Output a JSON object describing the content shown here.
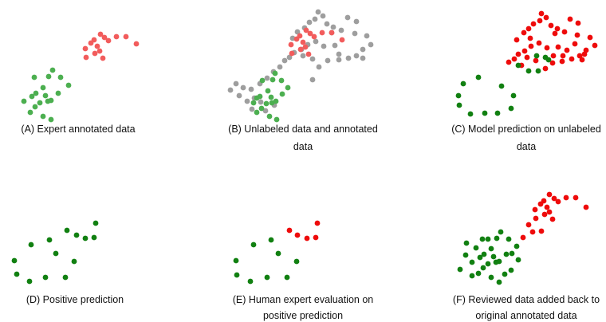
{
  "colors": {
    "annotated_green": "#4caf50",
    "annotated_red": "#f25c5c",
    "unlabeled_gray": "#9e9e9e",
    "pred_green": "#118011",
    "pred_red": "#ee0b0b"
  },
  "panels": [
    {
      "id": "A",
      "caption": [
        "(A) Expert annotated data"
      ],
      "clusters": [
        {
          "class": "negative",
          "color": "annotated_green",
          "points": [
            [
              66,
              88
            ],
            [
              43,
              97
            ],
            [
              61,
              96
            ],
            [
              76,
              97
            ],
            [
              86,
              107
            ],
            [
              54,
              110
            ],
            [
              73,
              117
            ],
            [
              45,
              117
            ],
            [
              40,
              121
            ],
            [
              57,
              120
            ],
            [
              64,
              126
            ],
            [
              30,
              127
            ],
            [
              50,
              129
            ],
            [
              60,
              127
            ],
            [
              44,
              134
            ],
            [
              38,
              141
            ],
            [
              54,
              146
            ],
            [
              64,
              150
            ]
          ]
        },
        {
          "class": "positive",
          "color": "annotated_red",
          "points": [
            [
              126,
              43
            ],
            [
              131,
              47
            ],
            [
              146,
              46
            ],
            [
              158,
              46
            ],
            [
              118,
              50
            ],
            [
              136,
              51
            ],
            [
              114,
              54
            ],
            [
              171,
              55
            ],
            [
              122,
              58
            ],
            [
              107,
              61
            ],
            [
              125,
              64
            ],
            [
              119,
              67
            ],
            [
              108,
              72
            ],
            [
              129,
              73
            ]
          ]
        }
      ]
    },
    {
      "id": "B",
      "caption": [
        "(B) Unlabeled data and annotated",
        "data"
      ],
      "clusters": [
        {
          "class": "unlabeled",
          "color": "unlabeled_gray",
          "points": [
            [
              399,
              15
            ],
            [
              405,
              20
            ],
            [
              395,
              24
            ],
            [
              388,
              28
            ],
            [
              382,
              35
            ],
            [
              373,
              40
            ],
            [
              410,
              30
            ],
            [
              418,
              34
            ],
            [
              428,
              38
            ],
            [
              436,
              22
            ],
            [
              447,
              27
            ],
            [
              445,
              42
            ],
            [
              460,
              45
            ],
            [
              465,
              56
            ],
            [
              455,
              62
            ],
            [
              447,
              70
            ],
            [
              437,
              73
            ],
            [
              425,
              68
            ],
            [
              420,
              57
            ],
            [
              396,
              52
            ],
            [
              406,
              58
            ],
            [
              386,
              56
            ],
            [
              378,
              62
            ],
            [
              369,
              66
            ],
            [
              380,
              70
            ],
            [
              392,
              74
            ],
            [
              363,
              72
            ],
            [
              357,
              76
            ],
            [
              351,
              84
            ],
            [
              343,
              90
            ],
            [
              335,
              98
            ],
            [
              326,
              105
            ],
            [
              315,
              112
            ],
            [
              305,
              110
            ],
            [
              296,
              105
            ],
            [
              289,
              113
            ],
            [
              300,
              120
            ],
            [
              310,
              127
            ],
            [
              319,
              123
            ],
            [
              327,
              128
            ],
            [
              316,
              137
            ],
            [
              333,
              139
            ],
            [
              344,
              132
            ],
            [
              400,
              84
            ],
            [
              411,
              76
            ],
            [
              416,
              41
            ],
            [
              367,
              48
            ],
            [
              425,
              75
            ],
            [
              392,
              100
            ],
            [
              455,
              73
            ]
          ]
        },
        {
          "class": "negative",
          "color": "annotated_green",
          "points": [
            [
              345,
              92
            ],
            [
              329,
              101
            ],
            [
              342,
              100
            ],
            [
              353,
              101
            ],
            [
              361,
              110
            ],
            [
              336,
              114
            ],
            [
              354,
              118
            ],
            [
              326,
              121
            ],
            [
              322,
              123
            ],
            [
              340,
              122
            ],
            [
              346,
              127
            ],
            [
              318,
              129
            ],
            [
              334,
              130
            ],
            [
              341,
              129
            ],
            [
              328,
              136
            ],
            [
              322,
              141
            ],
            [
              338,
              146
            ],
            [
              347,
              150
            ]
          ]
        },
        {
          "class": "positive",
          "color": "annotated_red",
          "points": [
            [
              384,
              38
            ],
            [
              389,
              42
            ],
            [
              404,
              41
            ],
            [
              416,
              41
            ],
            [
              376,
              45
            ],
            [
              394,
              46
            ],
            [
              372,
              49
            ],
            [
              429,
              50
            ],
            [
              380,
              53
            ],
            [
              365,
              56
            ],
            [
              383,
              59
            ],
            [
              377,
              62
            ],
            [
              366,
              67
            ],
            [
              387,
              68
            ]
          ]
        }
      ]
    },
    {
      "id": "C",
      "caption": [
        "(C) Model prediction on unlabeled",
        "data"
      ],
      "clusters": [
        {
          "class": "positive",
          "color": "pred_red",
          "points": [
            [
              679,
              17
            ],
            [
              685,
              22
            ],
            [
              677,
              26
            ],
            [
              669,
              30
            ],
            [
              663,
              36
            ],
            [
              657,
              41
            ],
            [
              691,
              32
            ],
            [
              699,
              36
            ],
            [
              708,
              40
            ],
            [
              715,
              24
            ],
            [
              725,
              29
            ],
            [
              724,
              44
            ],
            [
              740,
              47
            ],
            [
              746,
              57
            ],
            [
              735,
              63
            ],
            [
              727,
              70
            ],
            [
              717,
              74
            ],
            [
              706,
              70
            ],
            [
              700,
              59
            ],
            [
              676,
              54
            ],
            [
              686,
              60
            ],
            [
              666,
              58
            ],
            [
              658,
              64
            ],
            [
              650,
              68
            ],
            [
              661,
              72
            ],
            [
              672,
              76
            ],
            [
              645,
              74
            ],
            [
              638,
              78
            ],
            [
              684,
              86
            ],
            [
              693,
              79
            ],
            [
              696,
              42
            ],
            [
              648,
              50
            ],
            [
              705,
              77
            ],
            [
              730,
              75
            ],
            [
              665,
              48
            ],
            [
              711,
              63
            ],
            [
              721,
              55
            ],
            [
              733,
              68
            ],
            [
              694,
              70
            ],
            [
              654,
              82
            ]
          ]
        },
        {
          "class": "negative",
          "color": "pred_green",
          "points": [
            [
              673,
              70
            ],
            [
              684,
              72
            ],
            [
              688,
              75
            ],
            [
              650,
              82
            ],
            [
              663,
              89
            ],
            [
              675,
              89
            ],
            [
              600,
              97
            ],
            [
              581,
              105
            ],
            [
              629,
              108
            ],
            [
              575,
              120
            ],
            [
              644,
              120
            ],
            [
              576,
              132
            ],
            [
              641,
              136
            ],
            [
              590,
              143
            ],
            [
              608,
              142
            ],
            [
              624,
              142
            ]
          ]
        }
      ]
    },
    {
      "id": "D",
      "caption": [
        "(D) Positive prediction"
      ],
      "clusters": [
        {
          "class": "negative",
          "color": "pred_green",
          "points": [
            [
              120,
              280
            ],
            [
              84,
              289
            ],
            [
              96,
              295
            ],
            [
              107,
              299
            ],
            [
              118,
              298
            ],
            [
              62,
              301
            ],
            [
              39,
              307
            ],
            [
              70,
              318
            ],
            [
              18,
              327
            ],
            [
              93,
              328
            ],
            [
              21,
              344
            ],
            [
              82,
              348
            ],
            [
              57,
              348
            ],
            [
              37,
              353
            ]
          ]
        }
      ]
    },
    {
      "id": "E",
      "caption": [
        "(E) Human expert evaluation on",
        "positive prediction"
      ],
      "clusters": [
        {
          "class": "positive",
          "color": "pred_red",
          "points": [
            [
              398,
              280
            ],
            [
              363,
              289
            ],
            [
              373,
              295
            ],
            [
              385,
              299
            ],
            [
              396,
              298
            ]
          ]
        },
        {
          "class": "negative",
          "color": "pred_green",
          "points": [
            [
              340,
              301
            ],
            [
              318,
              307
            ],
            [
              349,
              318
            ],
            [
              296,
              327
            ],
            [
              372,
              328
            ],
            [
              297,
              345
            ],
            [
              360,
              348
            ],
            [
              335,
              348
            ],
            [
              314,
              353
            ]
          ]
        }
      ]
    },
    {
      "id": "F",
      "caption": [
        "(F) Reviewed data added back to",
        "original annotated data"
      ],
      "clusters": [
        {
          "class": "positive",
          "color": "pred_red",
          "points": [
            [
              689,
              244
            ],
            [
              695,
              249
            ],
            [
              710,
              248
            ],
            [
              722,
              248
            ],
            [
              682,
              252
            ],
            [
              700,
              253
            ],
            [
              678,
              256
            ],
            [
              735,
              260
            ],
            [
              686,
              260
            ],
            [
              671,
              263
            ],
            [
              689,
              266
            ],
            [
              683,
              269
            ],
            [
              672,
              274
            ],
            [
              693,
              275
            ],
            [
              663,
              282
            ],
            [
              668,
              291
            ],
            [
              656,
              298
            ],
            [
              679,
              290
            ]
          ]
        },
        {
          "class": "negative",
          "color": "pred_green",
          "points": [
            [
              628,
              291
            ],
            [
              605,
              300
            ],
            [
              623,
              299
            ],
            [
              638,
              300
            ],
            [
              648,
              309
            ],
            [
              616,
              312
            ],
            [
              635,
              319
            ],
            [
              607,
              319
            ],
            [
              602,
              323
            ],
            [
              619,
              322
            ],
            [
              626,
              328
            ],
            [
              592,
              329
            ],
            [
              612,
              331
            ],
            [
              622,
              329
            ],
            [
              606,
              336
            ],
            [
              600,
              343
            ],
            [
              616,
              348
            ],
            [
              626,
              354
            ],
            [
              585,
              305
            ],
            [
              584,
              320
            ],
            [
              577,
              338
            ],
            [
              592,
              346
            ],
            [
              642,
              318
            ],
            [
              650,
              326
            ],
            [
              641,
              339
            ],
            [
              633,
              344
            ],
            [
              612,
              300
            ],
            [
              597,
              311
            ]
          ]
        }
      ]
    }
  ]
}
